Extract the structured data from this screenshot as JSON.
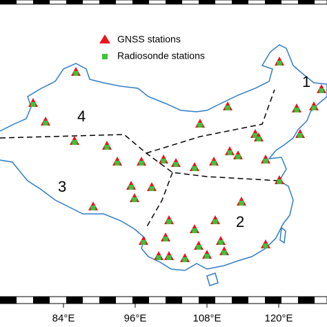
{
  "legend": {
    "items": [
      {
        "label": "GNSS stations",
        "color": "#e8141c"
      },
      {
        "label": "Radiosonde stations",
        "color": "#3cc43c"
      }
    ]
  },
  "regions": [
    "1",
    "2",
    "3",
    "4"
  ],
  "x_axis": {
    "ticks": [
      {
        "value": 84,
        "label": "84°E"
      },
      {
        "value": 96,
        "label": "96°E"
      },
      {
        "value": 108,
        "label": "108°E"
      },
      {
        "value": 120,
        "label": "120°E"
      }
    ]
  }
}
